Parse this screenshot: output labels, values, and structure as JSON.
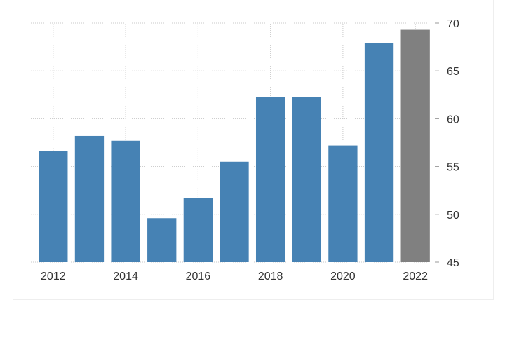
{
  "chart_data": {
    "type": "bar",
    "categories": [
      "2012",
      "2013",
      "2014",
      "2015",
      "2016",
      "2017",
      "2018",
      "2019",
      "2020",
      "2021",
      "2022"
    ],
    "values": [
      56.6,
      58.2,
      57.7,
      49.6,
      51.7,
      55.5,
      62.3,
      62.3,
      57.2,
      67.9,
      69.3
    ],
    "x_tick_labels": [
      "2012",
      "2014",
      "2016",
      "2018",
      "2020",
      "2022"
    ],
    "y_tick_labels": [
      "45",
      "50",
      "55",
      "60",
      "65",
      "70"
    ],
    "ylim": [
      45,
      70
    ],
    "y_axis_position": "right",
    "grid": true,
    "colors": {
      "bar": "#4682b4",
      "forecast_bar": "#808080",
      "grid": "#c8c8c8"
    },
    "highlighted_category": "2022"
  }
}
